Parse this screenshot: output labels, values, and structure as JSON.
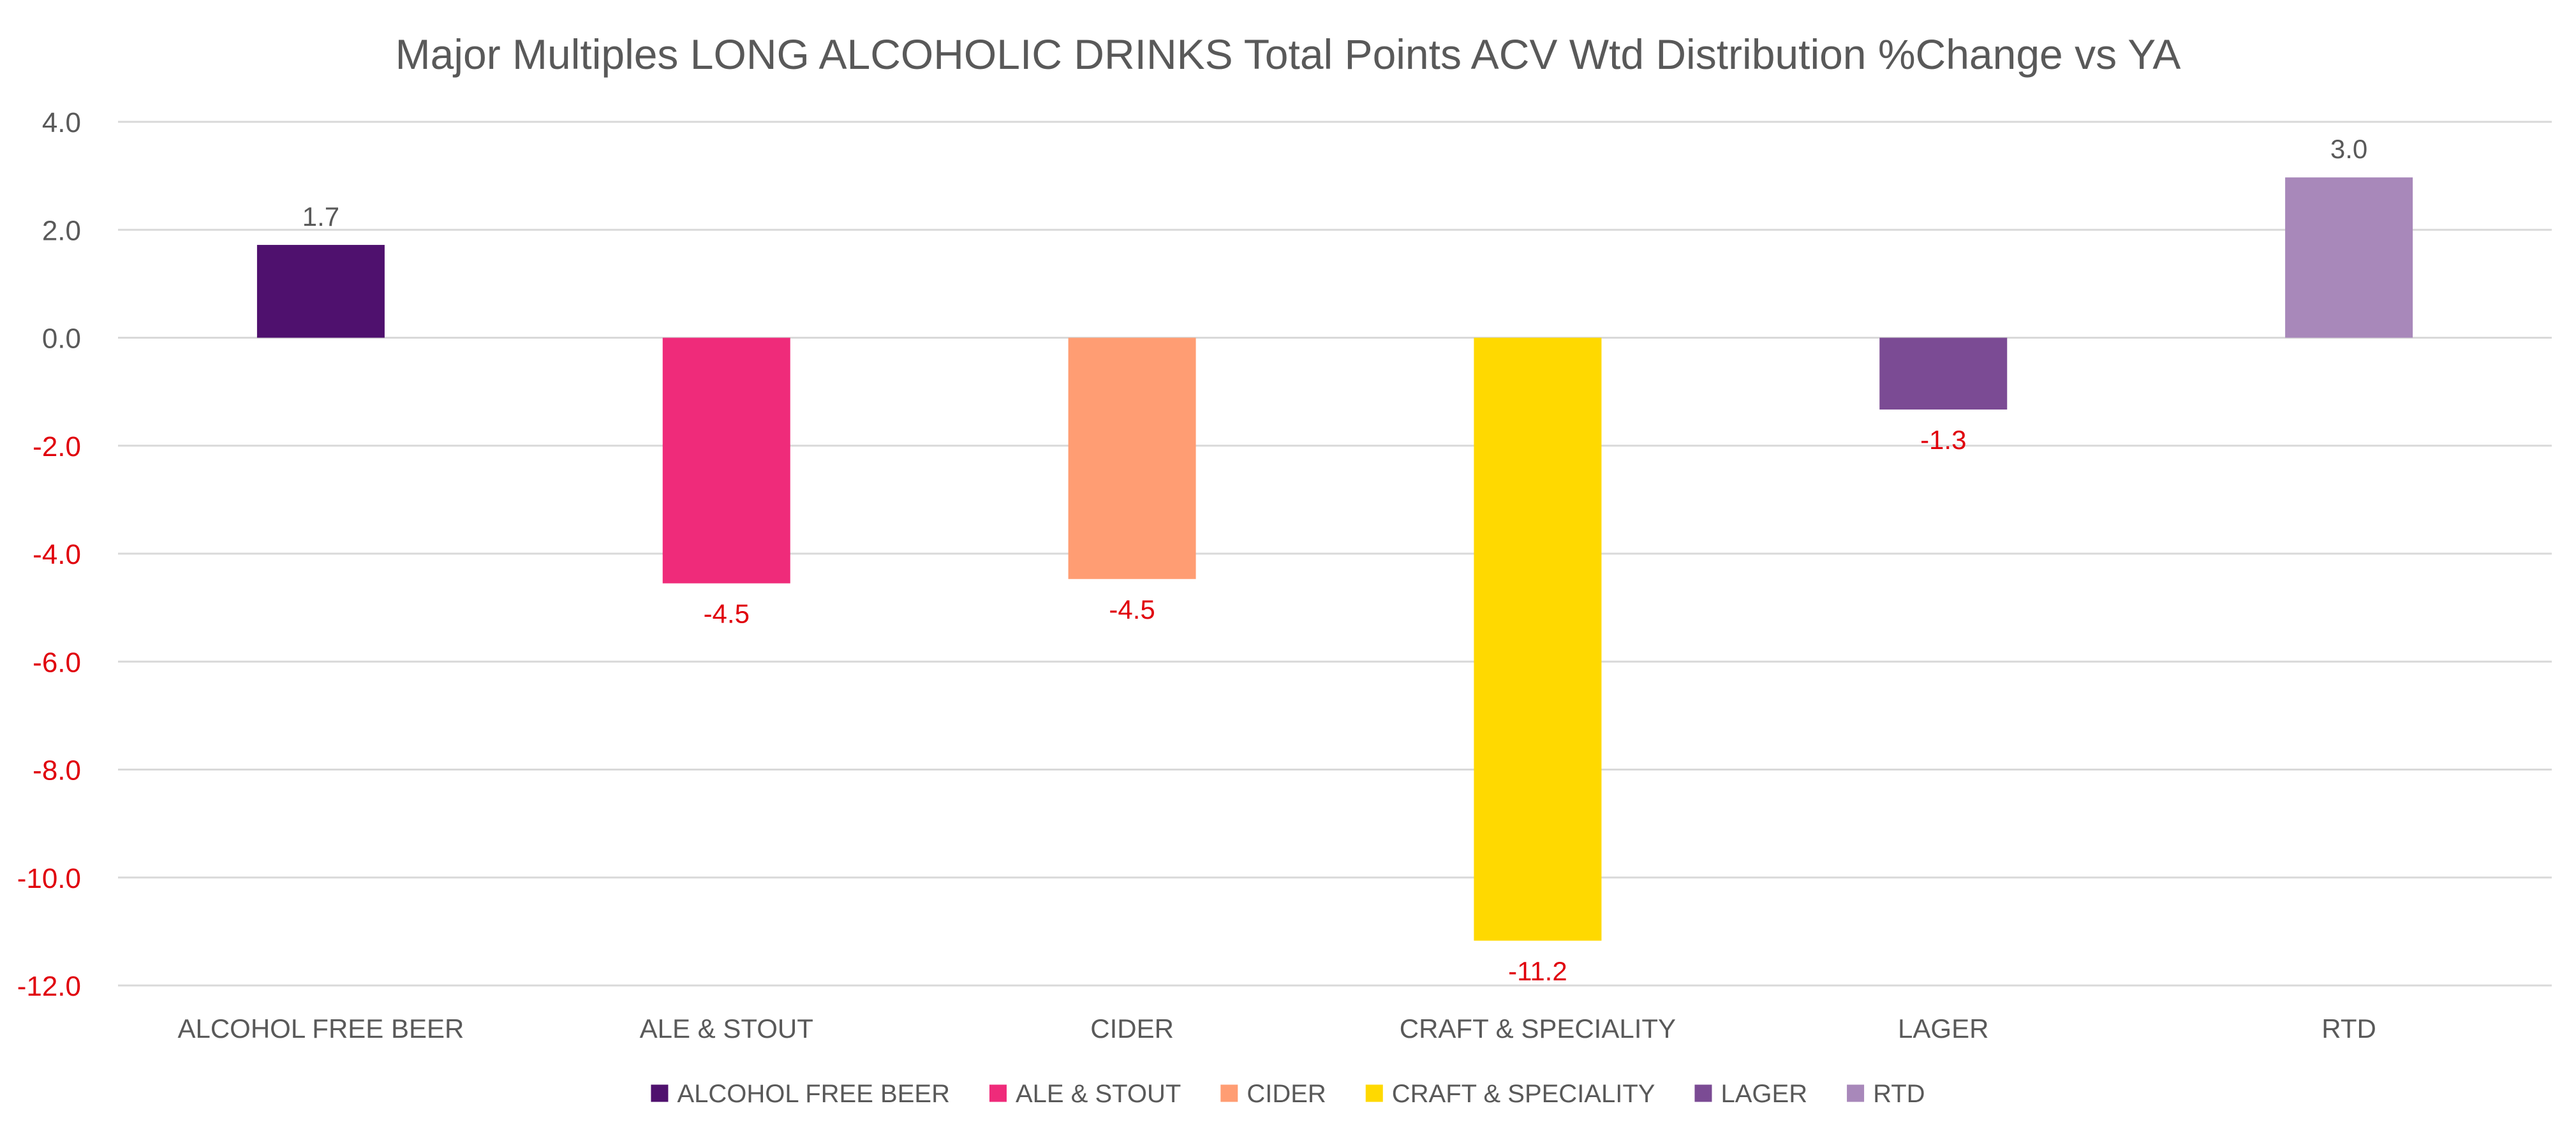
{
  "chart_data": {
    "type": "bar",
    "title": "Major Multiples LONG ALCOHOLIC DRINKS Total Points ACV Wtd Distribution %Change vs YA",
    "xlabel": "",
    "ylabel": "",
    "ylim": [
      -12,
      4
    ],
    "ytick_step": 2,
    "ytick_labels": [
      "4.0",
      "2.0",
      "0.0",
      "-2.0",
      "-4.0",
      "-6.0",
      "-8.0",
      "-10.0",
      "-12.0"
    ],
    "grid": true,
    "legend_position": "bottom",
    "categories": [
      "ALCOHOL FREE BEER",
      "ALE & STOUT",
      "CIDER",
      "CRAFT & SPECIALITY",
      "LAGER",
      "RTD"
    ],
    "values": [
      1.7,
      -4.5,
      -4.5,
      -11.2,
      -1.3,
      3.0
    ],
    "exact_values": [
      1.72,
      -4.55,
      -4.47,
      -11.17,
      -1.33,
      2.97
    ],
    "data_labels": [
      "1.7",
      "-4.5",
      "-4.5",
      "-11.2",
      "-1.3",
      "3.0"
    ],
    "colors": [
      "#4f116e",
      "#ef2b7a",
      "#ff9d73",
      "#ffd900",
      "#7b4b94",
      "#a888ba"
    ],
    "text_color": "#595959",
    "negative_color": "#e0000b",
    "grid_color": "#d9d9d9"
  }
}
